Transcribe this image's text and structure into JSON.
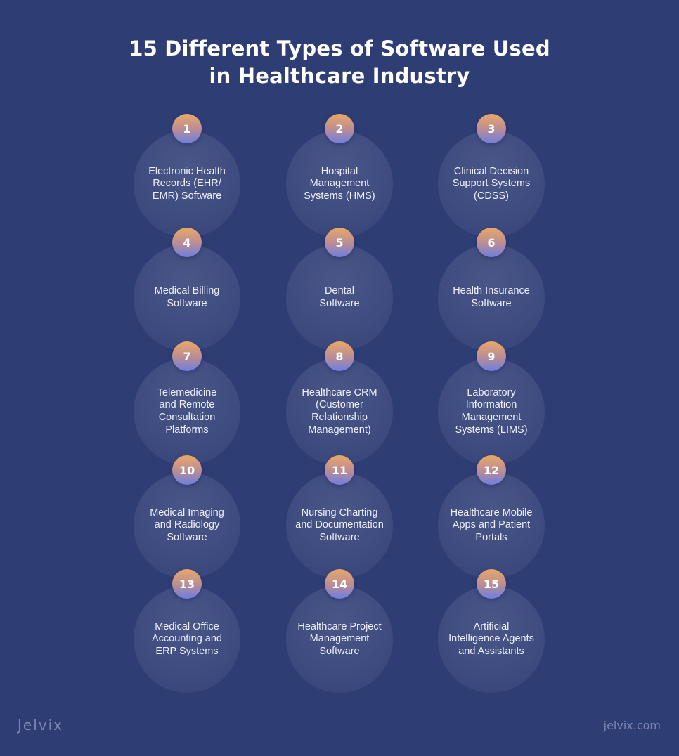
{
  "title": {
    "line1": "15 Different Types of Software Used",
    "line2": "in Healthcare Industry"
  },
  "items": [
    {
      "number": "1",
      "label": "Electronic Health\nRecords (EHR/\nEMR) Software"
    },
    {
      "number": "2",
      "label": "Hospital\nManagement\nSystems (HMS)"
    },
    {
      "number": "3",
      "label": "Clinical Decision\nSupport Systems\n(CDSS)"
    },
    {
      "number": "4",
      "label": "Medical Billing\nSoftware"
    },
    {
      "number": "5",
      "label": "Dental\nSoftware"
    },
    {
      "number": "6",
      "label": "Health Insurance\nSoftware"
    },
    {
      "number": "7",
      "label": "Telemedicine\nand Remote\nConsultation\nPlatforms"
    },
    {
      "number": "8",
      "label": "Healthcare CRM\n(Customer\nRelationship\nManagement)"
    },
    {
      "number": "9",
      "label": "Laboratory\nInformation\nManagement\nSystems (LIMS)"
    },
    {
      "number": "10",
      "label": "Medical Imaging\nand Radiology\nSoftware"
    },
    {
      "number": "11",
      "label": "Nursing Charting\nand Documentation\nSoftware"
    },
    {
      "number": "12",
      "label": "Healthcare Mobile\nApps and Patient\nPortals"
    },
    {
      "number": "13",
      "label": "Medical Office\nAccounting and\nERP Systems"
    },
    {
      "number": "14",
      "label": "Healthcare Project\nManagement\nSoftware"
    },
    {
      "number": "15",
      "label": "Artificial\nIntelligence Agents\nand Assistants"
    }
  ],
  "footer": {
    "brand": "Jelvix",
    "website": "jelvix.com"
  },
  "colors": {
    "background": "#2f3d75",
    "badge_top": "#e8a86a",
    "badge_bottom": "#6e7fe0",
    "footer_text": "#7d86b3"
  }
}
